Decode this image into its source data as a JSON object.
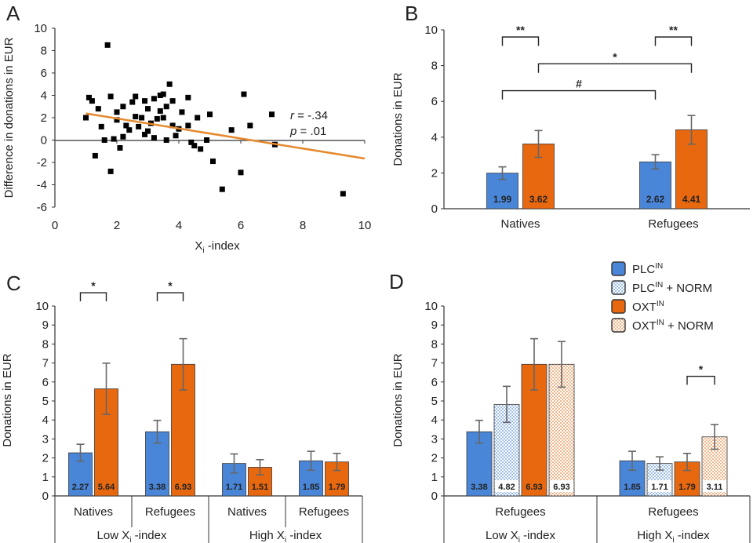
{
  "colors": {
    "plc": "#4a86d8",
    "oxt": "#e8680f",
    "regression": "#e5892c",
    "axis": "#333333",
    "error": "#666666"
  },
  "chart_data": [
    {
      "panel": "A",
      "type": "scatter",
      "xlabel": "X",
      "xlabel_sub": "i",
      "xlabel_suffix": " -index",
      "ylabel": "Difference in donations in EUR",
      "xlim": [
        0,
        10
      ],
      "ylim": [
        -6,
        10
      ],
      "xticks": [
        0,
        2,
        4,
        6,
        8,
        10
      ],
      "yticks": [
        -6,
        -4,
        -2,
        0,
        2,
        4,
        6,
        8,
        10
      ],
      "regression": {
        "x": [
          1.0,
          10.0
        ],
        "y": [
          2.38,
          -1.65
        ]
      },
      "stats": {
        "r_label": "r",
        "r_value": " = -.34",
        "p_label": "p",
        "p_value": " = .01"
      },
      "points": [
        [
          1.7,
          8.5
        ],
        [
          3.7,
          5.0
        ],
        [
          1.2,
          3.5
        ],
        [
          1.4,
          2.8
        ],
        [
          1.8,
          3.9
        ],
        [
          2.0,
          2.5
        ],
        [
          2.2,
          3.0
        ],
        [
          2.5,
          3.4
        ],
        [
          2.6,
          3.9
        ],
        [
          2.9,
          3.5
        ],
        [
          3.0,
          2.8
        ],
        [
          3.2,
          3.7
        ],
        [
          3.4,
          4.0
        ],
        [
          3.5,
          4.1
        ],
        [
          3.8,
          3.5
        ],
        [
          4.1,
          2.5
        ],
        [
          4.3,
          3.8
        ],
        [
          3.1,
          1.5
        ],
        [
          3.5,
          2.0
        ],
        [
          3.8,
          1.3
        ],
        [
          4.6,
          2.0
        ],
        [
          5.0,
          2.3
        ],
        [
          1.5,
          1.2
        ],
        [
          1.6,
          0.0
        ],
        [
          1.9,
          0.1
        ],
        [
          2.1,
          -0.7
        ],
        [
          2.4,
          0.9
        ],
        [
          2.7,
          1.2
        ],
        [
          2.9,
          0.5
        ],
        [
          3.2,
          0.2
        ],
        [
          3.6,
          0.0
        ],
        [
          4.0,
          1.0
        ],
        [
          4.3,
          1.3
        ],
        [
          4.5,
          -0.5
        ],
        [
          4.7,
          -0.8
        ],
        [
          4.9,
          0.0
        ],
        [
          1.1,
          3.8
        ],
        [
          1.0,
          2.0
        ],
        [
          1.3,
          -1.4
        ],
        [
          1.8,
          -2.8
        ],
        [
          2.2,
          0.3
        ],
        [
          2.6,
          2.1
        ],
        [
          3.3,
          1.9
        ],
        [
          3.9,
          0.4
        ],
        [
          4.4,
          -0.2
        ],
        [
          5.1,
          -1.9
        ],
        [
          5.4,
          -4.4
        ],
        [
          5.7,
          0.9
        ],
        [
          6.0,
          -2.9
        ],
        [
          6.1,
          4.1
        ],
        [
          6.3,
          1.3
        ],
        [
          7.0,
          2.3
        ],
        [
          7.1,
          -0.4
        ],
        [
          9.3,
          -4.8
        ],
        [
          2.0,
          1.8
        ],
        [
          2.3,
          1.3
        ],
        [
          2.8,
          2.0
        ],
        [
          3.0,
          0.8
        ],
        [
          3.4,
          2.6
        ],
        [
          3.6,
          3.0
        ]
      ]
    },
    {
      "panel": "B",
      "type": "bar",
      "ylabel": "Donations in EUR",
      "ylim": [
        0,
        10
      ],
      "yticks": [
        0,
        2,
        4,
        6,
        8,
        10
      ],
      "groups": [
        {
          "label": "Natives",
          "bars": [
            {
              "series": "PLC",
              "value": 1.99,
              "err": 0.35,
              "label": "1.99"
            },
            {
              "series": "OXT",
              "value": 3.62,
              "err": 0.75,
              "label": "3.62"
            }
          ]
        },
        {
          "label": "Refugees",
          "bars": [
            {
              "series": "PLC",
              "value": 2.62,
              "err": 0.4,
              "label": "2.62"
            },
            {
              "series": "OXT",
              "value": 4.41,
              "err": 0.8,
              "label": "4.41"
            }
          ]
        }
      ],
      "brackets": [
        {
          "from": [
            0,
            0
          ],
          "to": [
            0,
            1
          ],
          "y": 9.6,
          "drop": 0.5,
          "label": "**"
        },
        {
          "from": [
            1,
            0
          ],
          "to": [
            1,
            1
          ],
          "y": 9.6,
          "drop": 0.5,
          "label": "**"
        },
        {
          "from": [
            0,
            1
          ],
          "to": [
            1,
            1
          ],
          "y": 8.1,
          "drop": 0.5,
          "label": "*"
        },
        {
          "from": [
            0,
            0
          ],
          "to": [
            1,
            0
          ],
          "y": 6.6,
          "drop": 0.5,
          "label": "#"
        }
      ]
    },
    {
      "panel": "C",
      "type": "bar",
      "ylabel": "Donations in EUR",
      "ylim": [
        0,
        10
      ],
      "yticks": [
        0,
        1,
        2,
        3,
        4,
        5,
        6,
        7,
        8,
        9,
        10
      ],
      "groups": [
        {
          "label": "Natives",
          "bars": [
            {
              "series": "PLC",
              "value": 2.27,
              "err": 0.45,
              "label": "2.27"
            },
            {
              "series": "OXT",
              "value": 5.64,
              "err": 1.35,
              "label": "5.64"
            }
          ]
        },
        {
          "label": "Refugees",
          "bars": [
            {
              "series": "PLC",
              "value": 3.38,
              "err": 0.6,
              "label": "3.38"
            },
            {
              "series": "OXT",
              "value": 6.93,
              "err": 1.35,
              "label": "6.93"
            }
          ]
        },
        {
          "label": "Natives",
          "bars": [
            {
              "series": "PLC",
              "value": 1.71,
              "err": 0.5,
              "label": "1.71"
            },
            {
              "series": "OXT",
              "value": 1.51,
              "err": 0.4,
              "label": "1.51"
            }
          ]
        },
        {
          "label": "Refugees",
          "bars": [
            {
              "series": "PLC",
              "value": 1.85,
              "err": 0.5,
              "label": "1.85"
            },
            {
              "series": "OXT",
              "value": 1.79,
              "err": 0.45,
              "label": "1.79"
            }
          ]
        }
      ],
      "superGroups": [
        {
          "prefix": "Low X",
          "sub": "i",
          "suffix": " -index"
        },
        {
          "prefix": "High X",
          "sub": "i",
          "suffix": " -index"
        }
      ],
      "brackets": [
        {
          "from": [
            0,
            0
          ],
          "to": [
            0,
            1
          ],
          "y": 10.7,
          "drop": 0.45,
          "label": "*"
        },
        {
          "from": [
            1,
            0
          ],
          "to": [
            1,
            1
          ],
          "y": 10.7,
          "drop": 0.45,
          "label": "*"
        }
      ]
    },
    {
      "panel": "D",
      "type": "bar",
      "ylabel": "Donations in EUR",
      "ylim": [
        0,
        10
      ],
      "yticks": [
        0,
        1,
        2,
        3,
        4,
        5,
        6,
        7,
        8,
        9,
        10
      ],
      "groups": [
        {
          "label": "Refugees",
          "bars": [
            {
              "series": "PLC",
              "value": 3.38,
              "err": 0.6,
              "label": "3.38"
            },
            {
              "series": "PLC_NORM",
              "value": 4.82,
              "err": 0.95,
              "label": "4.82"
            },
            {
              "series": "OXT",
              "value": 6.93,
              "err": 1.35,
              "label": "6.93"
            },
            {
              "series": "OXT_NORM",
              "value": 6.93,
              "err": 1.2,
              "label": "6.93"
            }
          ]
        },
        {
          "label": "Refugees",
          "bars": [
            {
              "series": "PLC",
              "value": 1.85,
              "err": 0.5,
              "label": "1.85"
            },
            {
              "series": "PLC_NORM",
              "value": 1.71,
              "err": 0.35,
              "label": "1.71"
            },
            {
              "series": "OXT",
              "value": 1.79,
              "err": 0.45,
              "label": "1.79"
            },
            {
              "series": "OXT_NORM",
              "value": 3.11,
              "err": 0.65,
              "label": "3.11"
            }
          ]
        }
      ],
      "superGroups": [
        {
          "prefix": "Low X",
          "sub": "i",
          "suffix": " -index"
        },
        {
          "prefix": "High X",
          "sub": "i",
          "suffix": " -index"
        }
      ],
      "brackets": [
        {
          "from": [
            1,
            2
          ],
          "to": [
            1,
            3
          ],
          "y": 6.3,
          "drop": 0.45,
          "label": "*"
        }
      ]
    }
  ],
  "legend": [
    {
      "series": "PLC",
      "name": "PLC",
      "sup": "IN",
      "suffix": ""
    },
    {
      "series": "PLC_NORM",
      "name": "PLC",
      "sup": "IN",
      "suffix": " + NORM"
    },
    {
      "series": "OXT",
      "name": "OXT",
      "sup": "IN",
      "suffix": ""
    },
    {
      "series": "OXT_NORM",
      "name": "OXT",
      "sup": "IN",
      "suffix": " + NORM"
    }
  ]
}
